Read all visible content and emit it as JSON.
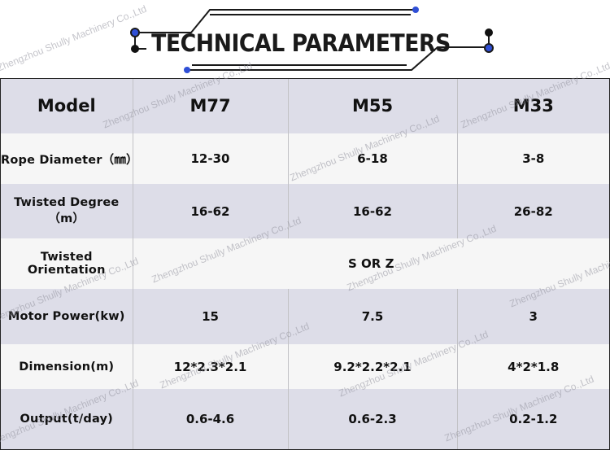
{
  "title": "TECHNICAL PARAMETERS",
  "watermark": "Zhengzhou Shully Machinery Co.,Ltd",
  "colors": {
    "row_dark": "#dddde8",
    "row_light": "#f6f6f6",
    "accent_dot": "#2f4fd6",
    "line": "#1a1a1a"
  },
  "table": {
    "header": {
      "label": "Model",
      "models": [
        "M77",
        "M55",
        "M33"
      ]
    },
    "rows": [
      {
        "label": "Rope  Diameter（㎜）",
        "values": [
          "12-30",
          "6-18",
          "3-8"
        ]
      },
      {
        "label": "Twisted  Degree（m）",
        "values": [
          "16-62",
          "16-62",
          "26-82"
        ]
      },
      {
        "label": "Twisted  Orientation",
        "merged": "S  OR  Z"
      },
      {
        "label": "Motor  Power(kw)",
        "values": [
          "15",
          "7.5",
          "3"
        ]
      },
      {
        "label": "Dimension(m)",
        "values": [
          "12*2.3*2.1",
          "9.2*2.2*2.1",
          "4*2*1.8"
        ]
      },
      {
        "label": "Output(t/day)",
        "values": [
          "0.6-4.6",
          "0.6-2.3",
          "0.2-1.2"
        ]
      }
    ]
  }
}
